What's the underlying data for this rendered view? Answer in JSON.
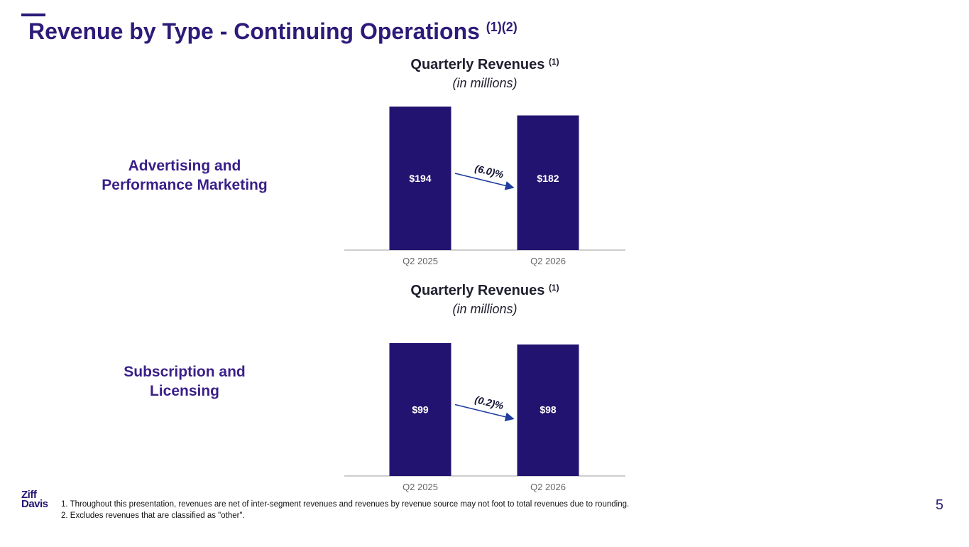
{
  "page": {
    "title": "Revenue by Type - Continuing Operations",
    "title_sup": "(1)(2)",
    "page_number": "5",
    "logo": {
      "line1": "Ziff",
      "line2": "Davis"
    }
  },
  "segments": [
    {
      "label_line1": "Advertising and",
      "label_line2": "Performance Marketing"
    },
    {
      "label_line1": "Subscription and",
      "label_line2": "Licensing"
    }
  ],
  "footnotes": [
    "1.  Throughout this presentation, revenues are net of inter-segment revenues and revenues by revenue source may not foot to total revenues due to rounding.",
    "2.  Excludes revenues that are classified as \"other\"."
  ],
  "colors": {
    "bar": "#231370",
    "arrow": "#1f3c9e",
    "axis": "#9e9e9e",
    "tick": "#666666"
  },
  "chart_data": [
    {
      "type": "bar",
      "title": "Quarterly Revenues",
      "title_sup": "(1)",
      "subtitle": "(in millions)",
      "categories": [
        "Q2 2025",
        "Q2 2026"
      ],
      "values": [
        194,
        182
      ],
      "data_labels": [
        "$194",
        "$182"
      ],
      "change_label": "(6.0)%",
      "ylim": [
        0,
        194
      ]
    },
    {
      "type": "bar",
      "title": "Quarterly Revenues",
      "title_sup": "(1)",
      "subtitle": "(in millions)",
      "categories": [
        "Q2 2025",
        "Q2 2026"
      ],
      "values": [
        99,
        98
      ],
      "data_labels": [
        "$99",
        "$98"
      ],
      "change_label": "(0.2)%",
      "ylim": [
        0,
        99
      ]
    }
  ]
}
